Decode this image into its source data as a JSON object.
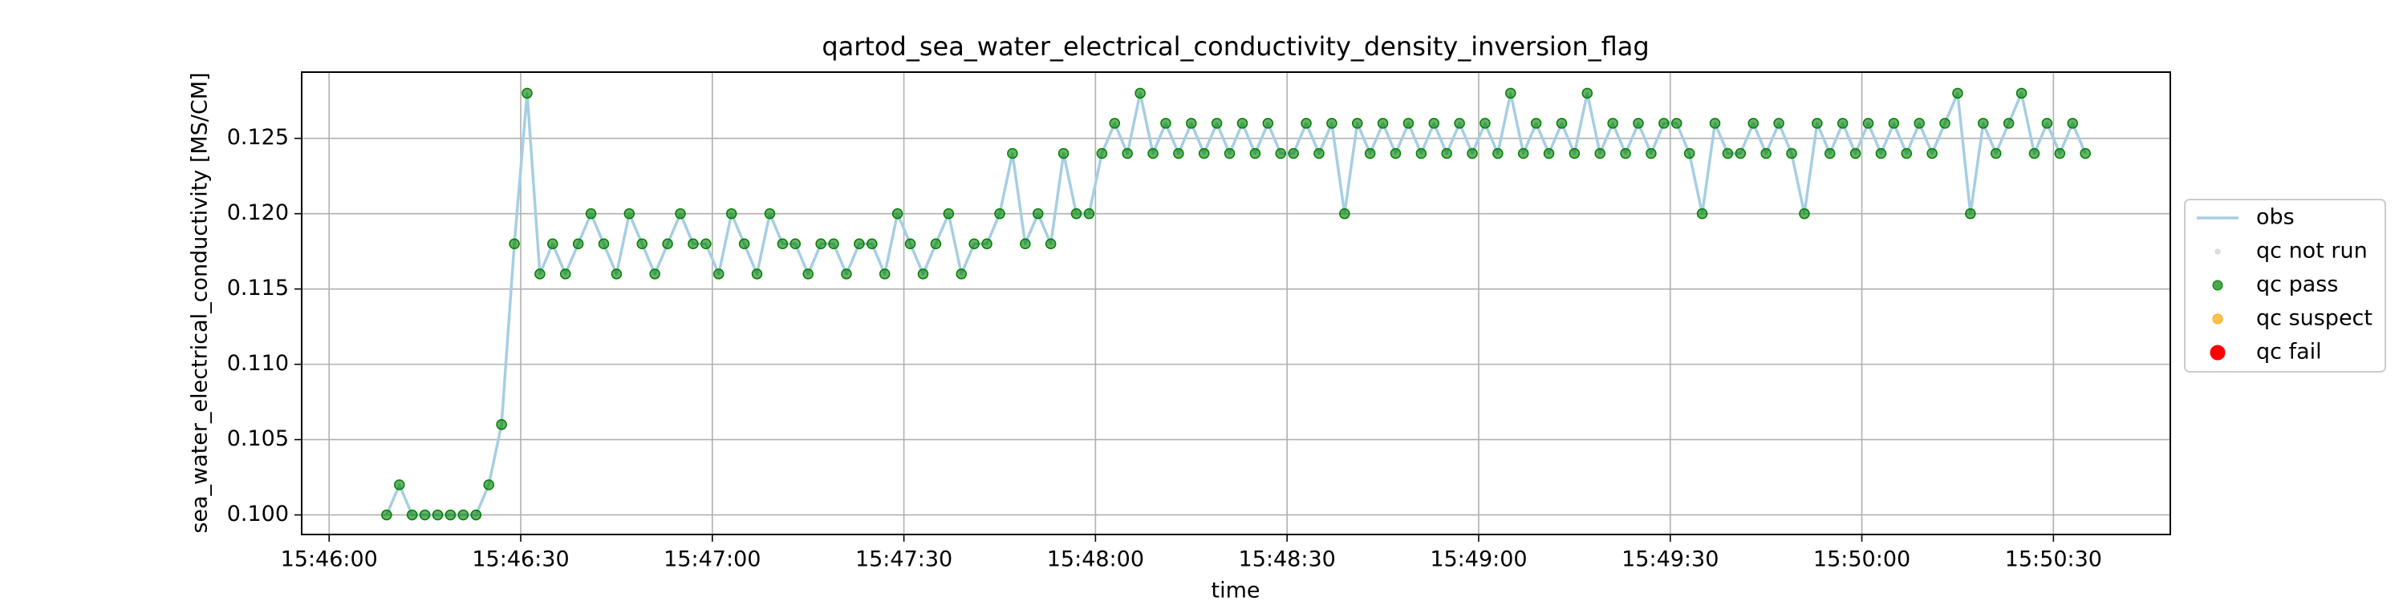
{
  "chart_data": {
    "type": "line_scatter",
    "title": "qartod_sea_water_electrical_conductivity_density_inversion_flag",
    "xlabel": "time",
    "ylabel": "sea_water_electrical_conductivity [MS/CM]",
    "x": [
      "15:46:09",
      "15:46:11",
      "15:46:13",
      "15:46:15",
      "15:46:17",
      "15:46:19",
      "15:46:21",
      "15:46:23",
      "15:46:25",
      "15:46:27",
      "15:46:29",
      "15:46:31",
      "15:46:33",
      "15:46:35",
      "15:46:37",
      "15:46:39",
      "15:46:41",
      "15:46:43",
      "15:46:45",
      "15:46:47",
      "15:46:49",
      "15:46:51",
      "15:46:53",
      "15:46:55",
      "15:46:57",
      "15:46:59",
      "15:47:01",
      "15:47:03",
      "15:47:05",
      "15:47:07",
      "15:47:09",
      "15:47:11",
      "15:47:13",
      "15:47:15",
      "15:47:17",
      "15:47:19",
      "15:47:21",
      "15:47:23",
      "15:47:25",
      "15:47:27",
      "15:47:29",
      "15:47:31",
      "15:47:33",
      "15:47:35",
      "15:47:37",
      "15:47:39",
      "15:47:41",
      "15:47:43",
      "15:47:45",
      "15:47:47",
      "15:47:49",
      "15:47:51",
      "15:47:53",
      "15:47:55",
      "15:47:57",
      "15:47:59",
      "15:48:01",
      "15:48:03",
      "15:48:05",
      "15:48:07",
      "15:48:09",
      "15:48:11",
      "15:48:13",
      "15:48:15",
      "15:48:17",
      "15:48:19",
      "15:48:21",
      "15:48:23",
      "15:48:25",
      "15:48:27",
      "15:48:29",
      "15:48:31",
      "15:48:33",
      "15:48:35",
      "15:48:37",
      "15:48:39",
      "15:48:41",
      "15:48:43",
      "15:48:45",
      "15:48:47",
      "15:48:49",
      "15:48:51",
      "15:48:53",
      "15:48:55",
      "15:48:57",
      "15:48:59",
      "15:49:01",
      "15:49:03",
      "15:49:05",
      "15:49:07",
      "15:49:09",
      "15:49:11",
      "15:49:13",
      "15:49:15",
      "15:49:17",
      "15:49:19",
      "15:49:21",
      "15:49:23",
      "15:49:25",
      "15:49:27",
      "15:49:29",
      "15:49:31",
      "15:49:33",
      "15:49:35",
      "15:49:37",
      "15:49:39",
      "15:49:41",
      "15:49:43",
      "15:49:45",
      "15:49:47",
      "15:49:49",
      "15:49:51",
      "15:49:53",
      "15:49:55",
      "15:49:57",
      "15:49:59",
      "15:50:01",
      "15:50:03",
      "15:50:05",
      "15:50:07",
      "15:50:09",
      "15:50:11",
      "15:50:13",
      "15:50:15",
      "15:50:17",
      "15:50:19",
      "15:50:21",
      "15:50:23",
      "15:50:25",
      "15:50:27",
      "15:50:29",
      "15:50:31",
      "15:50:33",
      "15:50:35"
    ],
    "series": [
      {
        "name": "obs",
        "color": "#a6cee3",
        "values": [
          0.1,
          0.102,
          0.1,
          0.1,
          0.1,
          0.1,
          0.1,
          0.1,
          0.102,
          0.106,
          0.118,
          0.128,
          0.116,
          0.118,
          0.116,
          0.118,
          0.12,
          0.118,
          0.116,
          0.12,
          0.118,
          0.116,
          0.118,
          0.12,
          0.118,
          0.118,
          0.116,
          0.12,
          0.118,
          0.116,
          0.12,
          0.118,
          0.118,
          0.116,
          0.118,
          0.118,
          0.116,
          0.118,
          0.118,
          0.116,
          0.12,
          0.118,
          0.116,
          0.118,
          0.12,
          0.116,
          0.118,
          0.118,
          0.12,
          0.124,
          0.118,
          0.12,
          0.118,
          0.124,
          0.12,
          0.12,
          0.124,
          0.126,
          0.124,
          0.128,
          0.124,
          0.126,
          0.124,
          0.126,
          0.124,
          0.126,
          0.124,
          0.126,
          0.124,
          0.126,
          0.124,
          0.124,
          0.126,
          0.124,
          0.126,
          0.12,
          0.126,
          0.124,
          0.126,
          0.124,
          0.126,
          0.124,
          0.126,
          0.124,
          0.126,
          0.124,
          0.126,
          0.124,
          0.128,
          0.124,
          0.126,
          0.124,
          0.126,
          0.124,
          0.128,
          0.124,
          0.126,
          0.124,
          0.126,
          0.124,
          0.126,
          0.126,
          0.124,
          0.12,
          0.126,
          0.124,
          0.124,
          0.126,
          0.124,
          0.126,
          0.124,
          0.12,
          0.126,
          0.124,
          0.126,
          0.124,
          0.126,
          0.124,
          0.126,
          0.124,
          0.126,
          0.124,
          0.126,
          0.128,
          0.12,
          0.126,
          0.124,
          0.126,
          0.128,
          0.124,
          0.126,
          0.124,
          0.126,
          0.124
        ]
      },
      {
        "name": "qc not run",
        "color": "#d3d3d3"
      },
      {
        "name": "qc pass",
        "color": "green",
        "values": [
          0.1,
          0.102,
          0.1,
          0.1,
          0.1,
          0.1,
          0.1,
          0.1,
          0.102,
          0.106,
          0.118,
          0.128,
          0.116,
          0.118,
          0.116,
          0.118,
          0.12,
          0.118,
          0.116,
          0.12,
          0.118,
          0.116,
          0.118,
          0.12,
          0.118,
          0.118,
          0.116,
          0.12,
          0.118,
          0.116,
          0.12,
          0.118,
          0.118,
          0.116,
          0.118,
          0.118,
          0.116,
          0.118,
          0.118,
          0.116,
          0.12,
          0.118,
          0.116,
          0.118,
          0.12,
          0.116,
          0.118,
          0.118,
          0.12,
          0.124,
          0.118,
          0.12,
          0.118,
          0.124,
          0.12,
          0.12,
          0.124,
          0.126,
          0.124,
          0.128,
          0.124,
          0.126,
          0.124,
          0.126,
          0.124,
          0.126,
          0.124,
          0.126,
          0.124,
          0.126,
          0.124,
          0.124,
          0.126,
          0.124,
          0.126,
          0.12,
          0.126,
          0.124,
          0.126,
          0.124,
          0.126,
          0.124,
          0.126,
          0.124,
          0.126,
          0.124,
          0.126,
          0.124,
          0.128,
          0.124,
          0.126,
          0.124,
          0.126,
          0.124,
          0.128,
          0.124,
          0.126,
          0.124,
          0.126,
          0.124,
          0.126,
          0.126,
          0.124,
          0.12,
          0.126,
          0.124,
          0.124,
          0.126,
          0.124,
          0.126,
          0.124,
          0.12,
          0.126,
          0.124,
          0.126,
          0.124,
          0.126,
          0.124,
          0.126,
          0.124,
          0.126,
          0.124,
          0.126,
          0.128,
          0.12,
          0.126,
          0.124,
          0.126,
          0.128,
          0.124,
          0.126,
          0.124,
          0.126,
          0.124
        ]
      },
      {
        "name": "qc suspect",
        "color": "orange"
      },
      {
        "name": "qc fail",
        "color": "red"
      }
    ],
    "xlim": [
      "15:45:55.7",
      "15:50:48.3"
    ],
    "xticks": [
      "15:46:00",
      "15:46:30",
      "15:47:00",
      "15:47:30",
      "15:48:00",
      "15:48:30",
      "15:49:00",
      "15:49:30",
      "15:50:00",
      "15:50:30"
    ],
    "ylim": [
      0.0987,
      0.1294
    ],
    "yticks": [
      {
        "value": 0.1,
        "label": "0.100"
      },
      0.105,
      {
        "value": 0.11,
        "label": "0.110"
      },
      0.115,
      {
        "value": 0.12,
        "label": "0.120"
      },
      0.125
    ],
    "grid": true,
    "legend": "outside right"
  }
}
